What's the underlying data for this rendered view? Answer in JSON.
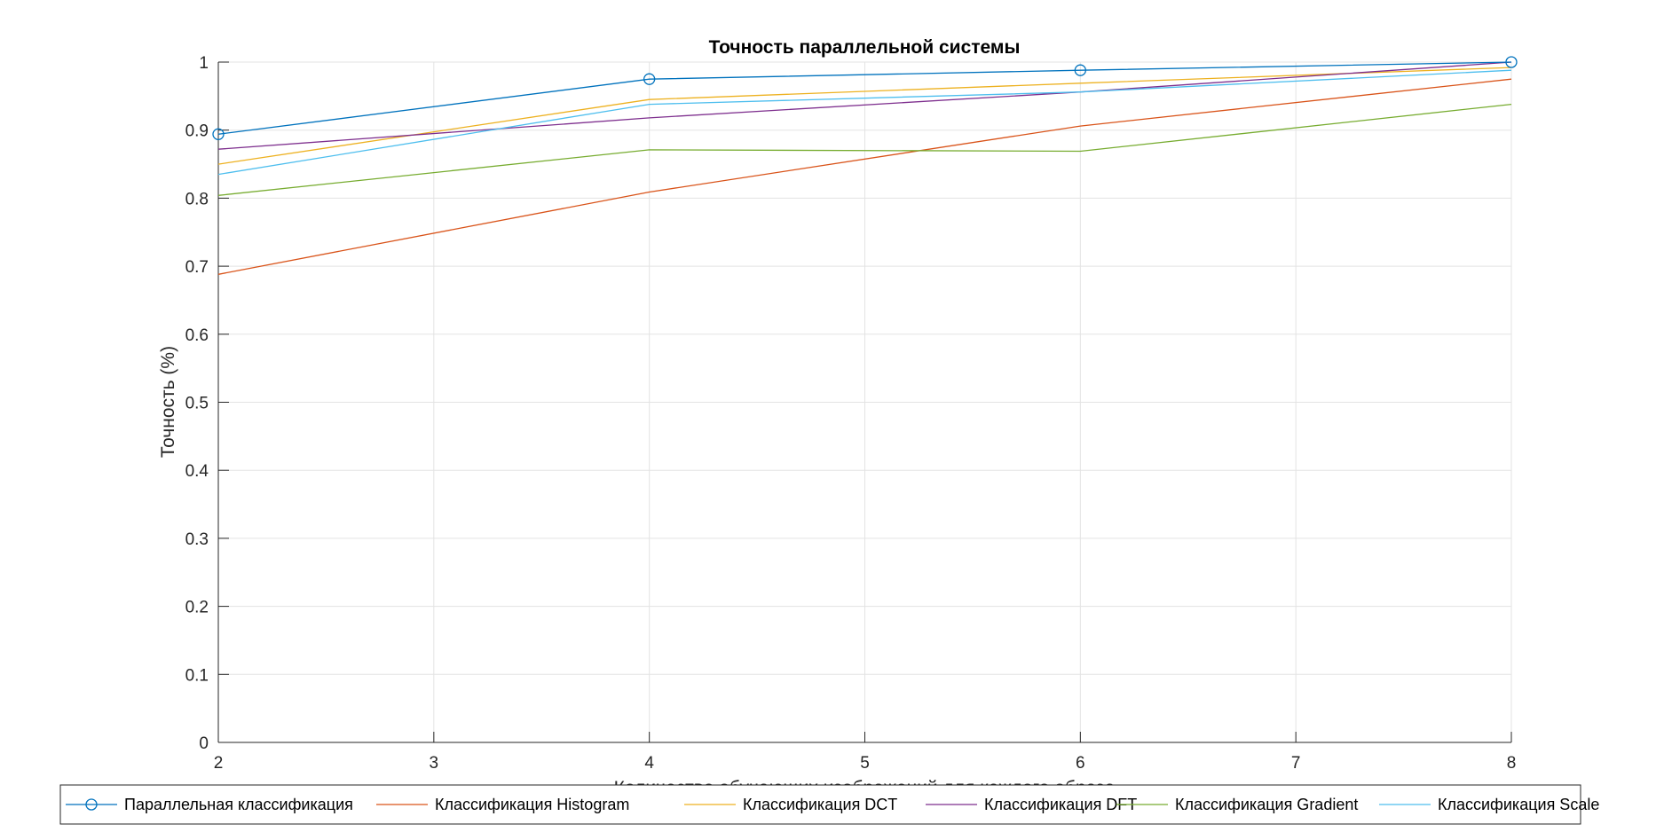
{
  "chart_data": {
    "type": "line",
    "title": "Точность параллельной системы",
    "xlabel": "Количество обучающих изображений для каждого образа",
    "ylabel": "Точность (%)",
    "x": [
      2,
      4,
      6,
      8
    ],
    "xlim": [
      2,
      8
    ],
    "ylim": [
      0,
      1
    ],
    "xticks": [
      "2",
      "3",
      "4",
      "5",
      "6",
      "7",
      "8"
    ],
    "yticks": [
      "0",
      "0.1",
      "0.2",
      "0.3",
      "0.4",
      "0.5",
      "0.6",
      "0.7",
      "0.8",
      "0.9",
      "1"
    ],
    "grid": true,
    "legend_position": "bottom",
    "series": [
      {
        "name": "Параллельная классификация",
        "values": [
          0.894,
          0.975,
          0.988,
          1.0
        ],
        "color": "#0072BD",
        "marker": "circle"
      },
      {
        "name": "Классификация Histogram",
        "values": [
          0.688,
          0.809,
          0.906,
          0.975
        ],
        "color": "#D95319",
        "marker": "none"
      },
      {
        "name": "Классификация DCT",
        "values": [
          0.85,
          0.945,
          0.969,
          0.992
        ],
        "color": "#EDB120",
        "marker": "none"
      },
      {
        "name": "Классификация DFT",
        "values": [
          0.872,
          0.918,
          0.956,
          1.0
        ],
        "color": "#7E2F8E",
        "marker": "none"
      },
      {
        "name": "Классификация Gradient",
        "values": [
          0.804,
          0.871,
          0.869,
          0.938
        ],
        "color": "#77AC30",
        "marker": "none"
      },
      {
        "name": "Классификация Scale",
        "values": [
          0.835,
          0.938,
          0.956,
          0.988
        ],
        "color": "#4DBEEE",
        "marker": "none"
      }
    ]
  }
}
